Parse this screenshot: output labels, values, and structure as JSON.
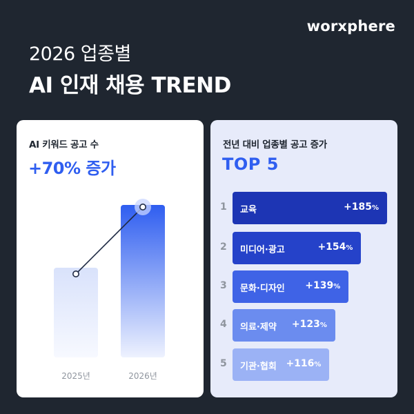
{
  "brand": "worxphere",
  "headline": {
    "line1": "2026 업종별",
    "line2": "AI 인재 채용 TREND"
  },
  "left_card": {
    "label": "AI 키워드 공고 수",
    "big": "+70% 증가"
  },
  "right_card": {
    "label": "전년 대비 업종별 공고 증가",
    "big": "TOP 5"
  },
  "chart_data": [
    {
      "type": "bar",
      "categories": [
        "2025년",
        "2026년"
      ],
      "series": [
        {
          "values": [
            100,
            170
          ]
        }
      ],
      "title": "AI 키워드 공고 수",
      "annotation": "+70% 증가",
      "ylim": [
        0,
        170
      ]
    },
    {
      "type": "bar",
      "orientation": "horizontal",
      "title": "전년 대비 업종별 공고 증가",
      "subtitle": "TOP 5",
      "ranks": [
        "1",
        "2",
        "3",
        "4",
        "5"
      ],
      "categories": [
        "교육",
        "미디어·광고",
        "문화·디자인",
        "의료·제약",
        "기관·협회"
      ],
      "values": [
        185,
        154,
        139,
        123,
        116
      ],
      "value_prefix": "+",
      "value_unit": "%",
      "colors": [
        "#1d35b4",
        "#2542c9",
        "#3f63e6",
        "#6b8cef",
        "#9bb2f5"
      ]
    }
  ]
}
